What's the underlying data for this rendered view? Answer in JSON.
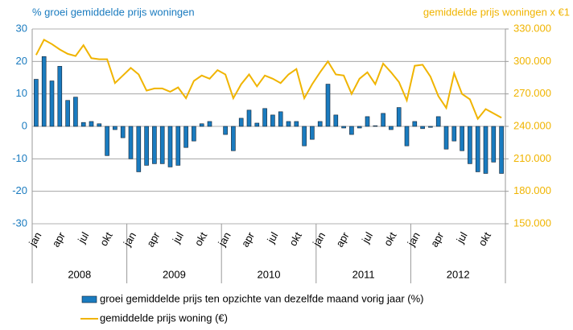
{
  "chart_data": {
    "type": "bar-line",
    "y_title": "% groei gemiddelde prijs woningen",
    "y2_title": "gemiddelde prijs woningen x €1",
    "categories": [
      "jan",
      null,
      null,
      "apr",
      null,
      null,
      "jul",
      null,
      null,
      "okt",
      null,
      null,
      "jan",
      null,
      null,
      "apr",
      null,
      null,
      "jul",
      null,
      null,
      "okt",
      null,
      null,
      "jan",
      null,
      null,
      "apr",
      null,
      null,
      "jul",
      null,
      null,
      "okt",
      null,
      null,
      "jan",
      null,
      null,
      "apr",
      null,
      null,
      "jul",
      null,
      null,
      "okt",
      null,
      null,
      "jan",
      null,
      null,
      "apr",
      null,
      null,
      "jul",
      null,
      null,
      "okt",
      null,
      null
    ],
    "groups": [
      "2008",
      "2009",
      "2010",
      "2011",
      "2012"
    ],
    "series": [
      {
        "name": "groei gemiddelde prijs ten opzichte van dezelfde maand vorig jaar (%)",
        "type": "bar",
        "color": "#1a7bbf",
        "values": [
          14.5,
          21.5,
          14,
          18.5,
          8,
          9,
          1.2,
          1.5,
          0.8,
          -9,
          -1,
          -3.5,
          -10,
          -14,
          -12,
          -11.5,
          -11.5,
          -12.5,
          -12,
          -6.5,
          -4.5,
          0.8,
          1.5,
          0,
          -2.5,
          -7.5,
          2.5,
          5,
          1,
          5.5,
          3.5,
          4.5,
          1.5,
          1.5,
          -6,
          -4,
          1.5,
          13,
          3.5,
          -0.5,
          -2.5,
          -0.5,
          3,
          0.2,
          4,
          -1,
          5.8,
          -6,
          1.5,
          -0.7,
          -0.3,
          3,
          -7,
          -4.5,
          -7.5,
          -11.5,
          -14,
          -14.5,
          -11,
          -14.5
        ]
      },
      {
        "name": "gemiddelde prijs woning (€)",
        "type": "line",
        "color": "#f0b400",
        "axis": "y2",
        "values": [
          306000,
          320000,
          316000,
          311000,
          307000,
          305000,
          315000,
          303000,
          302000,
          302000,
          280000,
          287000,
          294000,
          288000,
          273000,
          275000,
          275000,
          272000,
          276000,
          266000,
          282000,
          287000,
          284000,
          292000,
          288000,
          266000,
          279000,
          288000,
          277000,
          287000,
          284000,
          280000,
          288000,
          293000,
          266000,
          279000,
          290000,
          300000,
          288000,
          287000,
          270000,
          284000,
          290000,
          279000,
          298000,
          290000,
          281000,
          264000,
          296000,
          297000,
          286000,
          268000,
          257000,
          289000,
          270000,
          265000,
          247000,
          256000,
          252000,
          248000
        ]
      }
    ],
    "ylim": [
      -30,
      30
    ],
    "yticks": [
      -30,
      -20,
      -10,
      0,
      10,
      20,
      30
    ],
    "y2lim": [
      150000,
      330000
    ],
    "y2ticks": [
      {
        "value": 150000,
        "label": "150.000"
      },
      {
        "value": 180000,
        "label": "180.000"
      },
      {
        "value": 210000,
        "label": "210.000"
      },
      {
        "value": 240000,
        "label": "240.000"
      },
      {
        "value": 270000,
        "label": "270.000"
      },
      {
        "value": 300000,
        "label": "300.000"
      },
      {
        "value": 330000,
        "label": "330.000"
      }
    ],
    "grid": true
  }
}
